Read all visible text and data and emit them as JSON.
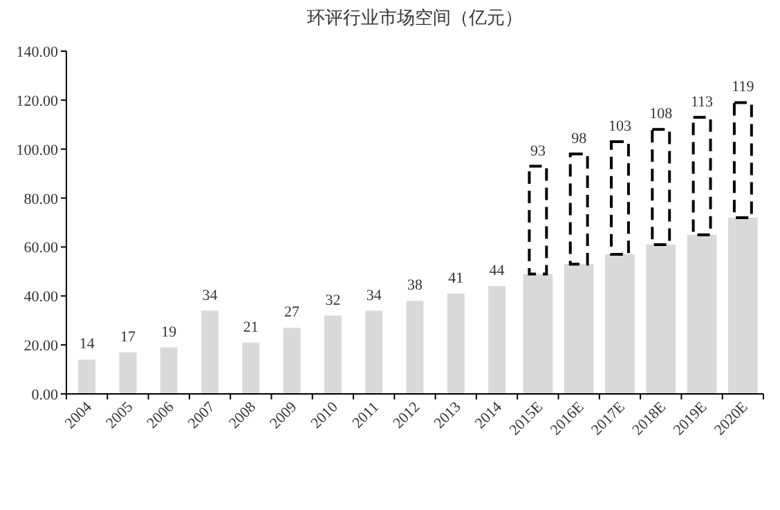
{
  "chart_data": {
    "type": "bar",
    "title": "环评行业市场空间（亿元）",
    "categories": [
      "2004",
      "2005",
      "2006",
      "2007",
      "2008",
      "2009",
      "2010",
      "2011",
      "2012",
      "2013",
      "2014",
      "2015E",
      "2016E",
      "2017E",
      "2018E",
      "2019E",
      "2020E"
    ],
    "stacked": true,
    "series": [
      {
        "color": "#d9d9d9",
        "values": [
          14,
          17,
          19,
          34,
          21,
          27,
          32,
          34,
          38,
          41,
          44,
          49,
          53,
          57,
          61,
          65,
          72
        ]
      },
      {
        "color": "#000000",
        "line_style": "dashed",
        "values": [
          null,
          null,
          null,
          null,
          null,
          null,
          null,
          null,
          null,
          null,
          null,
          44,
          45,
          46,
          47,
          48,
          47
        ]
      }
    ],
    "totals": [
      "14",
      "17",
      "19",
      "34",
      "21",
      "27",
      "32",
      "34",
      "38",
      "41",
      "44",
      "93",
      "98",
      "103",
      "108",
      "113",
      "119"
    ],
    "ylim": [
      0,
      140
    ],
    "yticks": [
      {
        "value": 0,
        "label": "0.00"
      },
      {
        "value": 20,
        "label": "20.00"
      },
      {
        "value": 40,
        "label": "40.00"
      },
      {
        "value": 60,
        "label": "60.00"
      },
      {
        "value": 80,
        "label": "80.00"
      },
      {
        "value": 100,
        "label": "100.00"
      },
      {
        "value": 120,
        "label": "120.00"
      },
      {
        "value": 140,
        "label": "140.00"
      }
    ],
    "grid": false
  }
}
